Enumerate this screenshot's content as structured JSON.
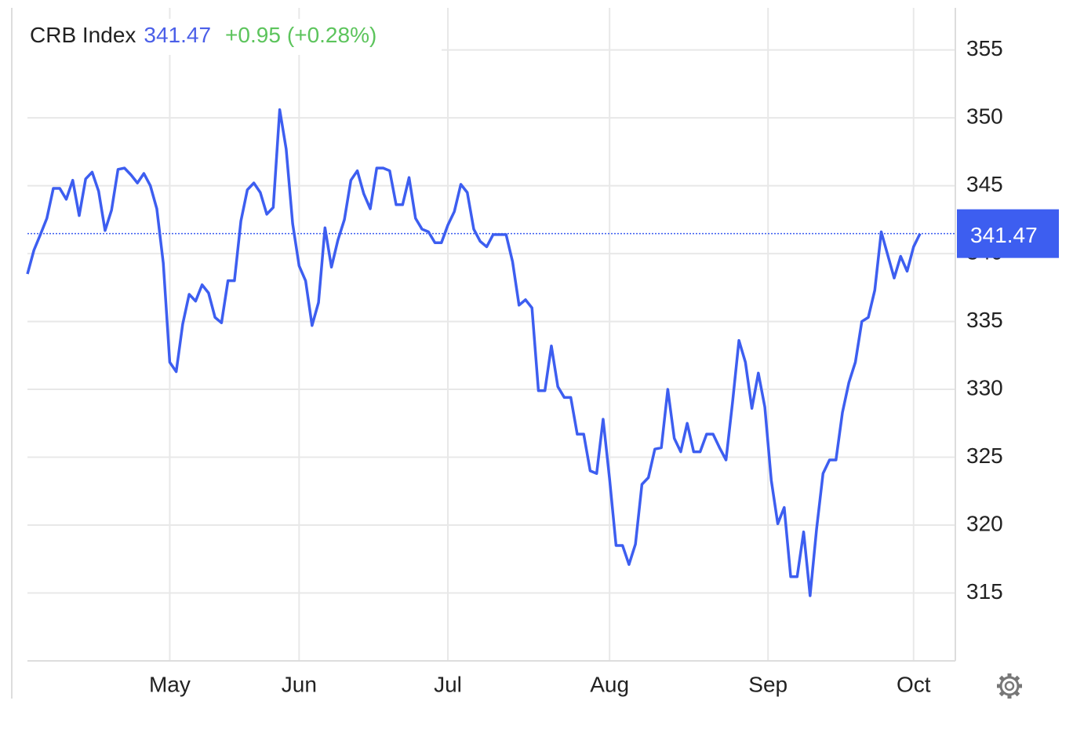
{
  "chart_data": {
    "type": "line",
    "title": "CRB Index",
    "last_price": "341.47",
    "change": "+0.95",
    "change_pct": "(+0.28%)",
    "series": [
      {
        "name": "CRB Index",
        "color": "#3d5ef0",
        "values": [
          338.5,
          340.25,
          341.4,
          342.6,
          344.8,
          344.8,
          344.0,
          345.4,
          342.8,
          345.5,
          346.0,
          344.6,
          341.7,
          343.2,
          346.2,
          346.3,
          345.8,
          345.2,
          345.9,
          345.0,
          343.3,
          339.3,
          332.0,
          331.3,
          334.8,
          337.0,
          336.5,
          337.7,
          337.1,
          335.3,
          334.9,
          338.0,
          338.0,
          342.4,
          344.7,
          345.2,
          344.5,
          342.9,
          343.4,
          350.6,
          347.7,
          342.2,
          339.1,
          338.0,
          334.7,
          336.4,
          341.9,
          339.0,
          341.0,
          342.5,
          345.4,
          346.1,
          344.4,
          343.3,
          346.3,
          346.3,
          346.1,
          343.6,
          343.6,
          345.6,
          342.6,
          341.8,
          341.6,
          340.8,
          340.8,
          342.1,
          343.1,
          345.1,
          344.5,
          341.8,
          340.9,
          340.5,
          341.4,
          341.4,
          341.4,
          339.4,
          336.2,
          336.6,
          336.0,
          329.9,
          329.9,
          333.2,
          330.2,
          329.4,
          329.4,
          326.7,
          326.7,
          324.0,
          323.8,
          327.8,
          323.4,
          318.5,
          318.5,
          317.1,
          318.6,
          323.0,
          323.5,
          325.6,
          325.7,
          330.0,
          326.4,
          325.4,
          327.5,
          325.4,
          325.4,
          326.7,
          326.7,
          325.7,
          324.8,
          329.0,
          333.6,
          332.0,
          328.6,
          331.2,
          328.7,
          323.3,
          320.1,
          321.3,
          316.2,
          316.2,
          319.5,
          314.8,
          319.7,
          323.8,
          324.8,
          324.8,
          328.3,
          330.5,
          332.0,
          335.0,
          335.3,
          337.3,
          341.6,
          339.9,
          338.2,
          339.8,
          338.7,
          340.5,
          341.47
        ]
      }
    ],
    "xlim": [
      0,
      138
    ],
    "xticks": [
      {
        "value": 22,
        "label": "May"
      },
      {
        "value": 42,
        "label": "Jun"
      },
      {
        "value": 65,
        "label": "Jul"
      },
      {
        "value": 90,
        "label": "Aug"
      },
      {
        "value": 114.5,
        "label": "Sep"
      },
      {
        "value": 137,
        "label": "Oct"
      }
    ],
    "ylim": [
      310,
      358.1
    ],
    "yticks": [
      315,
      320,
      325,
      330,
      335,
      340,
      345,
      350,
      355
    ],
    "grid": true,
    "price_line": true
  }
}
